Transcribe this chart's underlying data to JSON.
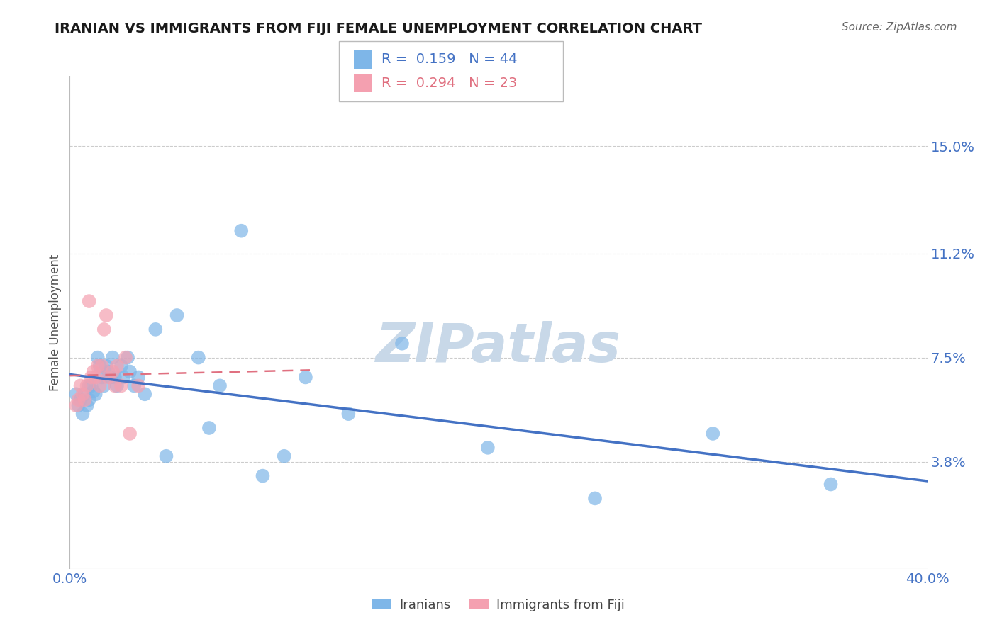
{
  "title": "IRANIAN VS IMMIGRANTS FROM FIJI FEMALE UNEMPLOYMENT CORRELATION CHART",
  "source": "Source: ZipAtlas.com",
  "ylabel": "Female Unemployment",
  "xmin": 0.0,
  "xmax": 0.4,
  "ymin": 0.0,
  "ymax": 0.175,
  "yticks": [
    0.038,
    0.075,
    0.112,
    0.15
  ],
  "ytick_labels": [
    "3.8%",
    "7.5%",
    "11.2%",
    "15.0%"
  ],
  "xticks": [
    0.0,
    0.4
  ],
  "xtick_labels": [
    "0.0%",
    "40.0%"
  ],
  "iranians_x": [
    0.003,
    0.004,
    0.005,
    0.006,
    0.007,
    0.008,
    0.009,
    0.009,
    0.01,
    0.011,
    0.012,
    0.013,
    0.014,
    0.015,
    0.016,
    0.017,
    0.018,
    0.019,
    0.02,
    0.021,
    0.022,
    0.024,
    0.025,
    0.027,
    0.028,
    0.03,
    0.032,
    0.035,
    0.04,
    0.045,
    0.05,
    0.06,
    0.065,
    0.07,
    0.08,
    0.09,
    0.1,
    0.11,
    0.13,
    0.155,
    0.195,
    0.245,
    0.3,
    0.355
  ],
  "iranians_y": [
    0.062,
    0.058,
    0.06,
    0.055,
    0.062,
    0.058,
    0.065,
    0.06,
    0.065,
    0.063,
    0.062,
    0.075,
    0.072,
    0.068,
    0.065,
    0.072,
    0.07,
    0.068,
    0.075,
    0.068,
    0.065,
    0.072,
    0.068,
    0.075,
    0.07,
    0.065,
    0.068,
    0.062,
    0.085,
    0.04,
    0.09,
    0.075,
    0.05,
    0.065,
    0.12,
    0.033,
    0.04,
    0.068,
    0.055,
    0.08,
    0.043,
    0.025,
    0.048,
    0.03
  ],
  "fiji_x": [
    0.003,
    0.004,
    0.005,
    0.006,
    0.007,
    0.008,
    0.009,
    0.01,
    0.011,
    0.012,
    0.013,
    0.014,
    0.015,
    0.016,
    0.017,
    0.018,
    0.02,
    0.021,
    0.022,
    0.024,
    0.026,
    0.028,
    0.032
  ],
  "fiji_y": [
    0.058,
    0.06,
    0.065,
    0.062,
    0.06,
    0.065,
    0.095,
    0.068,
    0.07,
    0.068,
    0.072,
    0.065,
    0.072,
    0.085,
    0.09,
    0.068,
    0.07,
    0.065,
    0.072,
    0.065,
    0.075,
    0.048,
    0.065
  ],
  "R_iranians": 0.159,
  "N_iranians": 44,
  "R_fiji": 0.294,
  "N_fiji": 23,
  "color_iranians": "#7eb6e8",
  "color_fiji": "#f4a0b0",
  "line_color_iranians": "#4472c4",
  "line_color_fiji": "#e07080",
  "background_color": "#ffffff",
  "grid_color": "#cccccc",
  "title_color": "#1a1a1a",
  "axis_label_color": "#4472c4",
  "watermark": "ZIPatlas",
  "watermark_color": "#c8d8e8"
}
